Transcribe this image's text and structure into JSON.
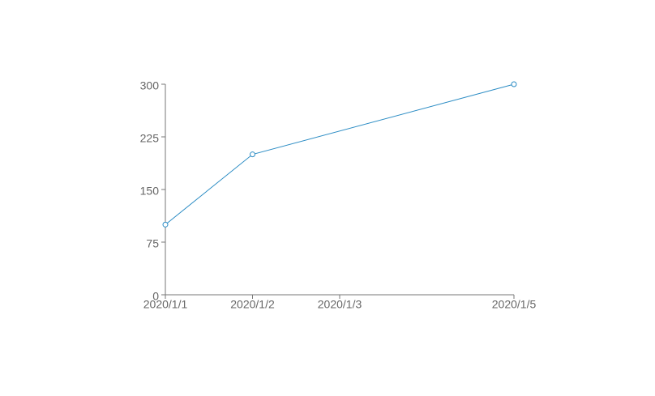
{
  "chart_data": {
    "type": "line",
    "x": [
      "2020/1/1",
      "2020/1/2",
      "2020/1/5"
    ],
    "series": [
      {
        "color": "#2b8cc4",
        "values": [
          100,
          200,
          300
        ]
      }
    ],
    "xlim": [
      "2020/1/1",
      "2020/1/5"
    ],
    "xticks": [
      "2020/1/1",
      "2020/1/2",
      "2020/1/3",
      "2020/1/5"
    ],
    "ylim": [
      0,
      300
    ],
    "yticks": [
      0,
      75,
      150,
      225,
      300
    ],
    "grid": false
  }
}
